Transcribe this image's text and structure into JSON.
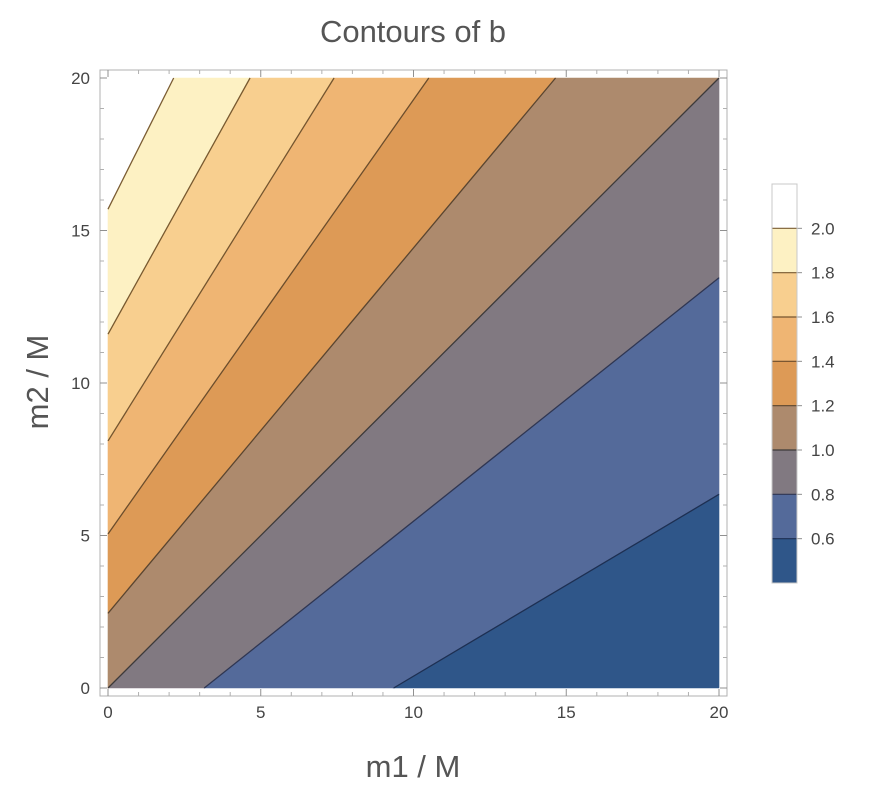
{
  "chart_data": {
    "type": "contour",
    "title": "Contours of b",
    "xlabel": "m1 / M",
    "ylabel": "m2 / M",
    "xlim": [
      0,
      20
    ],
    "ylim": [
      0,
      20
    ],
    "x_ticks": [
      "0",
      "5",
      "10",
      "15",
      "20"
    ],
    "y_ticks": [
      "0",
      "5",
      "10",
      "15",
      "20"
    ],
    "contour_levels": [
      0.6,
      0.8,
      1.0,
      1.2,
      1.4,
      1.6,
      1.8,
      2.0
    ],
    "band_colors": [
      "#2f5689",
      "#546a9a",
      "#817981",
      "#ad8a6d",
      "#dd9a56",
      "#efb573",
      "#f8cf8f",
      "#fdf1c3"
    ],
    "contour_line_colors": [
      "#1d2f52",
      "#2f3652",
      "#3d3a3a",
      "#5a4530",
      "#6b4d2c",
      "#74552f",
      "#78592f",
      "#7a5c33"
    ],
    "contour_lines": [
      {
        "level": 0.6,
        "points": [
          [
            9.35,
            0
          ],
          [
            20,
            6.35
          ]
        ]
      },
      {
        "level": 0.8,
        "points": [
          [
            3.15,
            0
          ],
          [
            20,
            13.45
          ]
        ]
      },
      {
        "level": 1.0,
        "points": [
          [
            0,
            0
          ],
          [
            20,
            20
          ]
        ]
      },
      {
        "level": 1.2,
        "points": [
          [
            0,
            2.45
          ],
          [
            14.65,
            20
          ]
        ]
      },
      {
        "level": 1.4,
        "points": [
          [
            0,
            5.05
          ],
          [
            10.5,
            20
          ]
        ]
      },
      {
        "level": 1.6,
        "points": [
          [
            0,
            8.1
          ],
          [
            7.4,
            20
          ]
        ]
      },
      {
        "level": 1.8,
        "points": [
          [
            0,
            11.6
          ],
          [
            4.65,
            20
          ]
        ]
      },
      {
        "level": 2.0,
        "points": [
          [
            0,
            15.7
          ],
          [
            2.15,
            20
          ]
        ]
      }
    ],
    "legend": {
      "position": "right",
      "tick_labels": [
        "0.6",
        "0.8",
        "1.0",
        "1.2",
        "1.4",
        "1.6",
        "1.8",
        "2.0"
      ],
      "range": [
        0.4,
        2.2
      ]
    }
  }
}
